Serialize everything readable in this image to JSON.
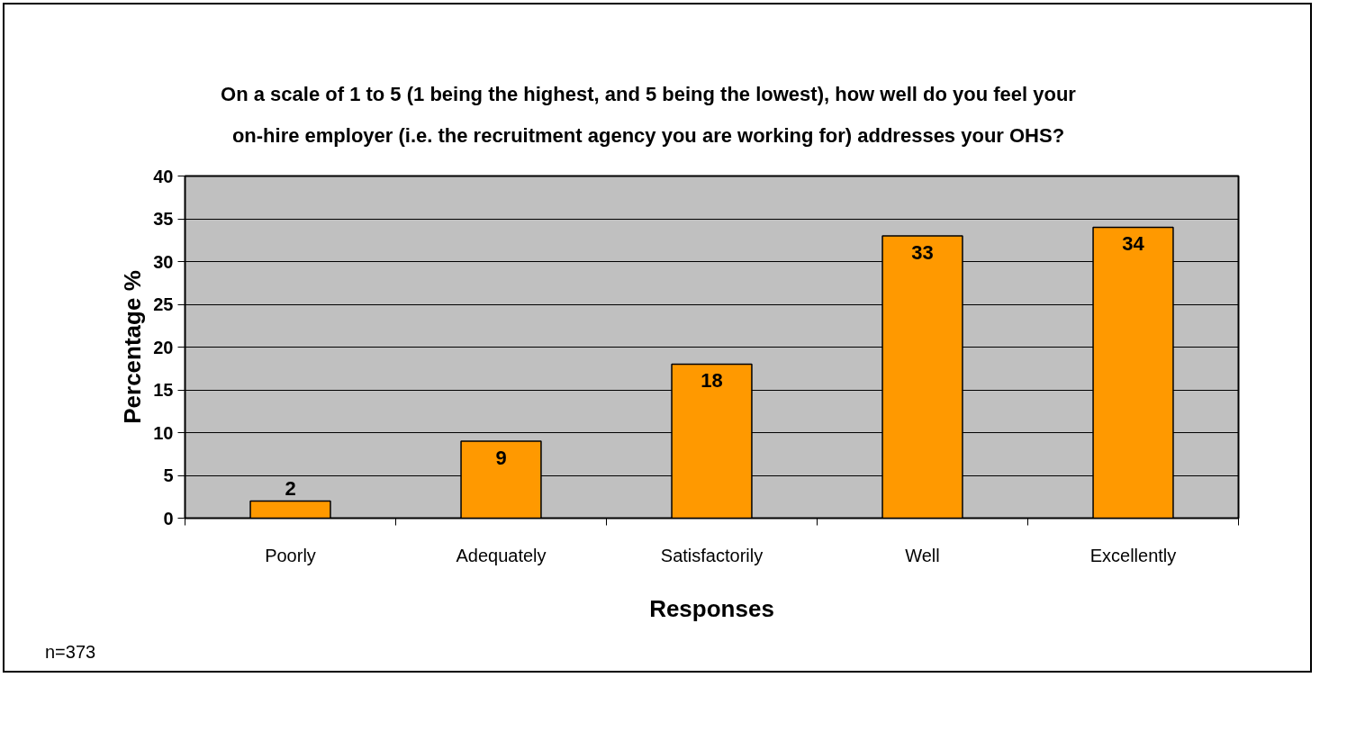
{
  "chart_data": {
    "type": "bar",
    "title": "On a scale of 1 to 5 (1 being the highest, and 5 being the lowest), how well do you feel your on-hire employer (i.e. the recruitment agency you are working for) addresses your OHS?",
    "xlabel": "Responses",
    "ylabel": "Percentage %",
    "categories": [
      "Poorly",
      "Adequately",
      "Satisfactorily",
      "Well",
      "Excellently"
    ],
    "values": [
      2,
      9,
      18,
      33,
      34
    ],
    "color": "#ff9900",
    "ylim": [
      0,
      40
    ],
    "yticks": [
      0,
      5,
      10,
      15,
      20,
      25,
      30,
      35,
      40
    ],
    "grid": "y",
    "data_labels": true,
    "annotations": [
      "n=373"
    ]
  }
}
